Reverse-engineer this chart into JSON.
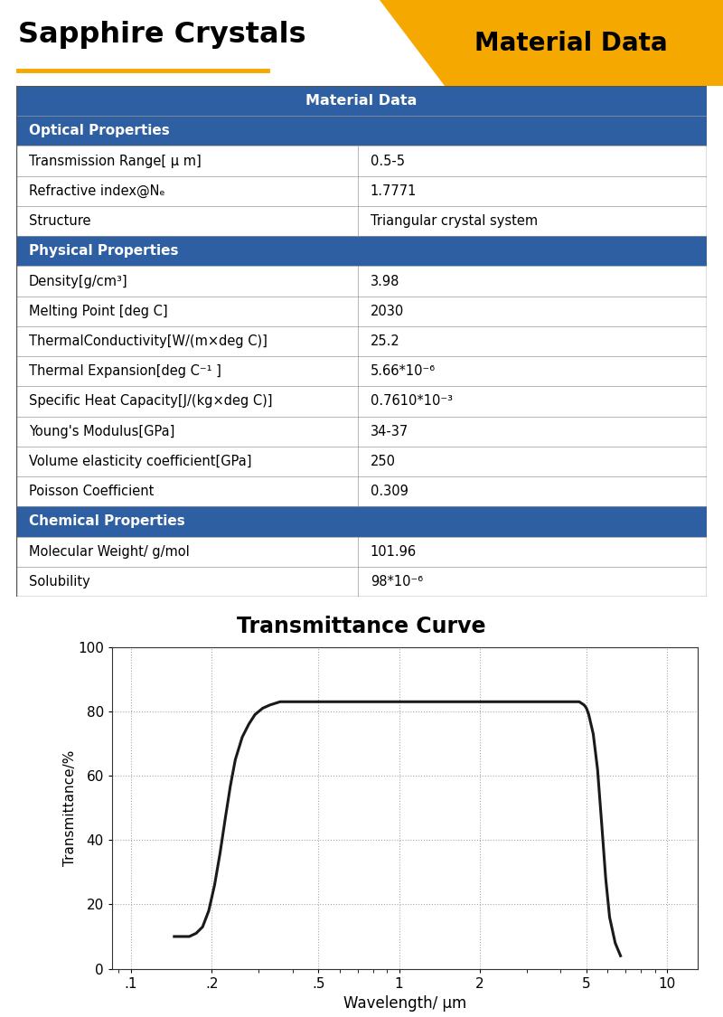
{
  "title_left": "Sapphire Crystals",
  "title_right": "Material Data",
  "title_bg_color": "#F5A800",
  "title_left_color": "#000000",
  "header_bg_color": "#2E5FA3",
  "header_text_color": "#FFFFFF",
  "section_bg_color": "#2E5FA3",
  "section_text_color": "#FFFFFF",
  "row_bg_even": "#FFFFFF",
  "row_bg_odd": "#FFFFFF",
  "underline_color": "#F5A800",
  "table_header": "Material Data",
  "sections": [
    {
      "name": "Optical Properties",
      "rows": [
        [
          "Transmission Range[ μ m]",
          "0.5-5"
        ],
        [
          "Refractive index@Nₑ",
          "1.7771"
        ],
        [
          "Structure",
          "Triangular crystal system"
        ]
      ]
    },
    {
      "name": "Physical Properties",
      "rows": [
        [
          "Density[g/cm³]",
          "3.98"
        ],
        [
          "Melting Point [deg C]",
          "2030"
        ],
        [
          "ThermalConductivity[W/(m×deg C)]",
          "25.2"
        ],
        [
          "Thermal Expansion[deg C⁻¹ ]",
          "5.66*10⁻⁶"
        ],
        [
          "Specific Heat Capacity[J/(kg×deg C)]",
          "0.7610*10⁻³"
        ],
        [
          "Young's Modulus[GPa]",
          "34-37"
        ],
        [
          "Volume elasticity coefficient[GPa]",
          "250"
        ],
        [
          "Poisson Coefficient",
          "0.309"
        ]
      ]
    },
    {
      "name": "Chemical Properties",
      "rows": [
        [
          "Molecular Weight/ g/mol",
          "101.96"
        ],
        [
          "Solubility",
          "98*10⁻⁶"
        ]
      ]
    }
  ],
  "curve_title": "Transmittance Curve",
  "curve_xlabel": "Wavelength/ μm",
  "curve_ylabel": "Transmittance/%",
  "curve_color": "#1a1a1a",
  "curve_x": [
    0.145,
    0.155,
    0.165,
    0.175,
    0.185,
    0.195,
    0.205,
    0.215,
    0.225,
    0.235,
    0.245,
    0.26,
    0.275,
    0.29,
    0.31,
    0.33,
    0.36,
    0.39,
    0.42,
    0.46,
    0.5,
    0.55,
    0.6,
    0.7,
    0.9,
    1.2,
    1.8,
    2.5,
    3.5,
    4.2,
    4.5,
    4.7,
    4.9,
    5.0,
    5.1,
    5.3,
    5.5,
    5.7,
    5.9,
    6.1,
    6.4,
    6.7
  ],
  "curve_y": [
    10,
    10,
    10,
    11,
    13,
    18,
    26,
    36,
    47,
    57,
    65,
    72,
    76,
    79,
    81,
    82,
    83,
    83,
    83,
    83,
    83,
    83,
    83,
    83,
    83,
    83,
    83,
    83,
    83,
    83,
    83,
    83,
    82,
    81,
    79,
    73,
    62,
    45,
    28,
    16,
    8,
    4
  ]
}
